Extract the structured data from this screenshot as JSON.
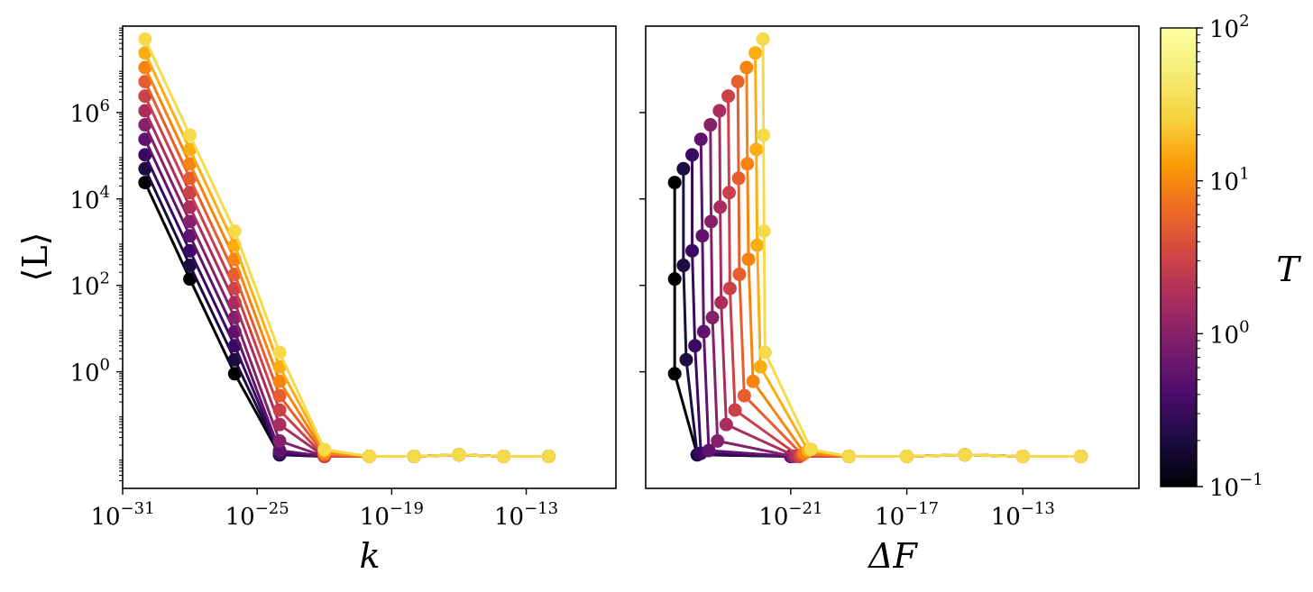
{
  "figure": {
    "left_panel": {
      "xlabel": "k",
      "ylabel": "⟨L⟩",
      "xticks": [
        {
          "base": "10",
          "exp": "−31"
        },
        {
          "base": "10",
          "exp": "−25"
        },
        {
          "base": "10",
          "exp": "−19"
        },
        {
          "base": "10",
          "exp": "−13"
        }
      ],
      "yticks": [
        {
          "base": "10",
          "exp": "6"
        },
        {
          "base": "10",
          "exp": "4"
        },
        {
          "base": "10",
          "exp": "2"
        },
        {
          "base": "10",
          "exp": "0"
        }
      ]
    },
    "right_panel": {
      "xlabel": "ΔF",
      "xticks": [
        {
          "base": "10",
          "exp": "−21"
        },
        {
          "base": "10",
          "exp": "−17"
        },
        {
          "base": "10",
          "exp": "−13"
        }
      ]
    },
    "colorbar": {
      "label": "T",
      "ticks": [
        {
          "base": "10",
          "exp": "2"
        },
        {
          "base": "10",
          "exp": "1"
        },
        {
          "base": "10",
          "exp": "0"
        },
        {
          "base": "10",
          "exp": "−1"
        }
      ],
      "colormap": "inferno",
      "scale": "log",
      "range": [
        0.1,
        100
      ]
    }
  },
  "chart_data": [
    {
      "type": "line",
      "panel": "left",
      "xscale": "log",
      "yscale": "log",
      "xlim": [
        1e-31,
        1e-09
      ],
      "ylim": [
        0.002,
        100000000.0
      ],
      "xlabel": "k",
      "ylabel": "⟨L⟩",
      "x": [
        1e-30,
        1e-28,
        1e-26,
        1e-24,
        1e-22,
        1e-20,
        1e-18,
        1e-16,
        1e-14,
        1e-12
      ],
      "series": [
        {
          "T": 0.1,
          "color": "#000004",
          "values": [
            24000,
            140,
            0.9,
            0.012,
            0.011,
            0.011,
            0.011,
            0.012,
            0.011,
            0.011
          ]
        },
        {
          "T": 0.15,
          "color": "#1b0c41",
          "values": [
            50000,
            290,
            1.9,
            0.012,
            0.011,
            0.011,
            0.011,
            0.012,
            0.011,
            0.011
          ]
        },
        {
          "T": 0.2,
          "color": "#3a0963",
          "values": [
            105000,
            630,
            4.0,
            0.013,
            0.011,
            0.011,
            0.011,
            0.012,
            0.011,
            0.011
          ]
        },
        {
          "T": 0.3,
          "color": "#60136e",
          "values": [
            240000,
            1400,
            8.5,
            0.015,
            0.011,
            0.011,
            0.011,
            0.012,
            0.011,
            0.011
          ]
        },
        {
          "T": 0.5,
          "color": "#85216b",
          "values": [
            520000,
            3000,
            18,
            0.025,
            0.011,
            0.011,
            0.011,
            0.012,
            0.011,
            0.011
          ]
        },
        {
          "T": 1.0,
          "color": "#a92e5e",
          "values": [
            1100000,
            6500,
            40,
            0.06,
            0.011,
            0.011,
            0.011,
            0.012,
            0.011,
            0.011
          ]
        },
        {
          "T": 2.0,
          "color": "#cb4149",
          "values": [
            2400000,
            14000,
            85,
            0.13,
            0.011,
            0.011,
            0.011,
            0.012,
            0.011,
            0.011
          ]
        },
        {
          "T": 4.0,
          "color": "#e65d2f",
          "values": [
            5200000,
            30000,
            180,
            0.28,
            0.012,
            0.011,
            0.011,
            0.012,
            0.011,
            0.011
          ]
        },
        {
          "T": 10.0,
          "color": "#f78311",
          "values": [
            11000000,
            65000,
            400,
            0.6,
            0.013,
            0.011,
            0.011,
            0.012,
            0.011,
            0.011
          ]
        },
        {
          "T": 30.0,
          "color": "#fcad12",
          "values": [
            24000000,
            140000,
            850,
            1.3,
            0.015,
            0.011,
            0.011,
            0.012,
            0.011,
            0.011
          ]
        },
        {
          "T": 100.0,
          "color": "#f5db4c",
          "values": [
            50000000,
            300000,
            1800,
            2.8,
            0.016,
            0.011,
            0.011,
            0.012,
            0.011,
            0.011
          ]
        }
      ]
    },
    {
      "type": "line",
      "panel": "right",
      "xscale": "log",
      "yscale": "log",
      "xlim": [
        1e-26,
        1e-09
      ],
      "ylim": [
        0.002,
        100000000.0
      ],
      "xlabel": "ΔF",
      "ylabel": "⟨L⟩",
      "series": [
        {
          "T": 0.1,
          "color": "#000004",
          "points": [
            [
              1e-25,
              24000
            ],
            [
              1e-25,
              140
            ],
            [
              1e-25,
              0.9
            ],
            [
              6e-25,
              0.012
            ],
            [
              1e-21,
              0.011
            ],
            [
              1e-19,
              0.011
            ],
            [
              1e-17,
              0.011
            ],
            [
              1e-15,
              0.012
            ],
            [
              1e-13,
              0.011
            ],
            [
              1e-11,
              0.011
            ]
          ]
        },
        {
          "T": 0.15,
          "color": "#1b0c41",
          "points": [
            [
              2e-25,
              50000
            ],
            [
              2e-25,
              290
            ],
            [
              2.5e-25,
              1.9
            ],
            [
              6e-25,
              0.012
            ],
            [
              1e-21,
              0.011
            ],
            [
              1e-19,
              0.011
            ],
            [
              1e-17,
              0.011
            ],
            [
              1e-15,
              0.012
            ],
            [
              1e-13,
              0.011
            ],
            [
              1e-11,
              0.011
            ]
          ]
        },
        {
          "T": 0.2,
          "color": "#3a0963",
          "points": [
            [
              4e-25,
              105000
            ],
            [
              4e-25,
              630
            ],
            [
              5e-25,
              4.0
            ],
            [
              8e-25,
              0.013
            ],
            [
              1e-21,
              0.011
            ],
            [
              1e-19,
              0.011
            ],
            [
              1e-17,
              0.011
            ],
            [
              1e-15,
              0.012
            ],
            [
              1e-13,
              0.011
            ],
            [
              1e-11,
              0.011
            ]
          ]
        },
        {
          "T": 0.3,
          "color": "#60136e",
          "points": [
            [
              8e-25,
              240000
            ],
            [
              9e-25,
              1400
            ],
            [
              1e-24,
              8.5
            ],
            [
              1.5e-24,
              0.015
            ],
            [
              1e-21,
              0.011
            ],
            [
              1e-19,
              0.011
            ],
            [
              1e-17,
              0.011
            ],
            [
              1e-15,
              0.012
            ],
            [
              1e-13,
              0.011
            ],
            [
              1e-11,
              0.011
            ]
          ]
        },
        {
          "T": 0.5,
          "color": "#85216b",
          "points": [
            [
              1.7e-24,
              520000
            ],
            [
              1.8e-24,
              3000
            ],
            [
              2e-24,
              18
            ],
            [
              3e-24,
              0.025
            ],
            [
              1.2e-21,
              0.011
            ],
            [
              1e-19,
              0.011
            ],
            [
              1e-17,
              0.011
            ],
            [
              1e-15,
              0.012
            ],
            [
              1e-13,
              0.011
            ],
            [
              1e-11,
              0.011
            ]
          ]
        },
        {
          "T": 1.0,
          "color": "#a92e5e",
          "points": [
            [
              3.5e-24,
              1100000
            ],
            [
              3.7e-24,
              6500
            ],
            [
              4e-24,
              40
            ],
            [
              6e-24,
              0.06
            ],
            [
              1.5e-21,
              0.011
            ],
            [
              1e-19,
              0.011
            ],
            [
              1e-17,
              0.011
            ],
            [
              1e-15,
              0.012
            ],
            [
              1e-13,
              0.011
            ],
            [
              1e-11,
              0.011
            ]
          ]
        },
        {
          "T": 2.0,
          "color": "#cb4149",
          "points": [
            [
              7e-24,
              2400000
            ],
            [
              7.5e-24,
              14000
            ],
            [
              8e-24,
              85
            ],
            [
              1.2e-23,
              0.13
            ],
            [
              2e-21,
              0.011
            ],
            [
              1e-19,
              0.011
            ],
            [
              1e-17,
              0.011
            ],
            [
              1e-15,
              0.012
            ],
            [
              1e-13,
              0.011
            ],
            [
              1e-11,
              0.011
            ]
          ]
        },
        {
          "T": 4.0,
          "color": "#e65d2f",
          "points": [
            [
              1.5e-23,
              5200000
            ],
            [
              1.6e-23,
              30000
            ],
            [
              1.7e-23,
              180
            ],
            [
              2.5e-23,
              0.28
            ],
            [
              2.5e-21,
              0.012
            ],
            [
              1e-19,
              0.011
            ],
            [
              1e-17,
              0.011
            ],
            [
              1e-15,
              0.012
            ],
            [
              1e-13,
              0.011
            ],
            [
              1e-11,
              0.011
            ]
          ]
        },
        {
          "T": 10.0,
          "color": "#f78311",
          "points": [
            [
              3e-23,
              11000000
            ],
            [
              3.2e-23,
              65000
            ],
            [
              3.5e-23,
              400
            ],
            [
              5e-23,
              0.6
            ],
            [
              3e-21,
              0.013
            ],
            [
              1e-19,
              0.011
            ],
            [
              1e-17,
              0.011
            ],
            [
              1e-15,
              0.012
            ],
            [
              1e-13,
              0.011
            ],
            [
              1e-11,
              0.011
            ]
          ]
        },
        {
          "T": 30.0,
          "color": "#fcad12",
          "points": [
            [
              6e-23,
              24000000
            ],
            [
              6.5e-23,
              140000
            ],
            [
              7e-23,
              850
            ],
            [
              9e-23,
              1.3
            ],
            [
              4e-21,
              0.015
            ],
            [
              1e-19,
              0.011
            ],
            [
              1e-17,
              0.011
            ],
            [
              1e-15,
              0.012
            ],
            [
              1e-13,
              0.011
            ],
            [
              1e-11,
              0.011
            ]
          ]
        },
        {
          "T": 100.0,
          "color": "#f5db4c",
          "points": [
            [
              1.1e-22,
              50000000
            ],
            [
              1.15e-22,
              300000
            ],
            [
              1.2e-22,
              1800
            ],
            [
              1.3e-22,
              2.8
            ],
            [
              5e-21,
              0.016
            ],
            [
              1e-19,
              0.011
            ],
            [
              1e-17,
              0.011
            ],
            [
              1e-15,
              0.012
            ],
            [
              1e-13,
              0.011
            ],
            [
              1e-11,
              0.011
            ]
          ]
        }
      ]
    }
  ]
}
